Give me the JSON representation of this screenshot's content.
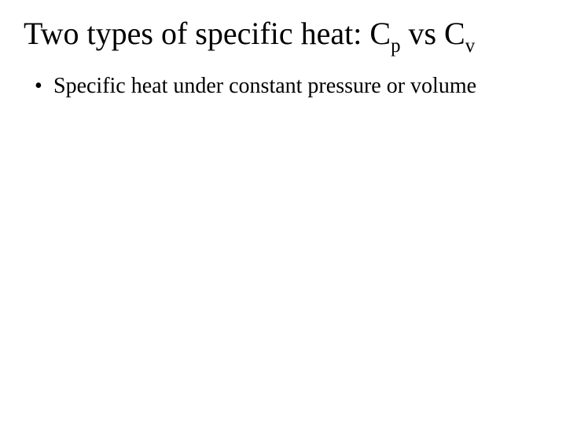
{
  "slide": {
    "background_color": "#ffffff",
    "text_color": "#000000",
    "font_family": "Times New Roman",
    "title": {
      "full_plain": "Two types of specific heat: Cp vs Cv",
      "prefix": "Two types of specific heat: C",
      "sub1": "p",
      "mid": " vs C",
      "sub2": "v",
      "fontsize_pt": 40,
      "weight": "normal"
    },
    "bullets": [
      {
        "text": "Specific heat under constant pressure or volume",
        "fontsize_pt": 28
      }
    ]
  }
}
